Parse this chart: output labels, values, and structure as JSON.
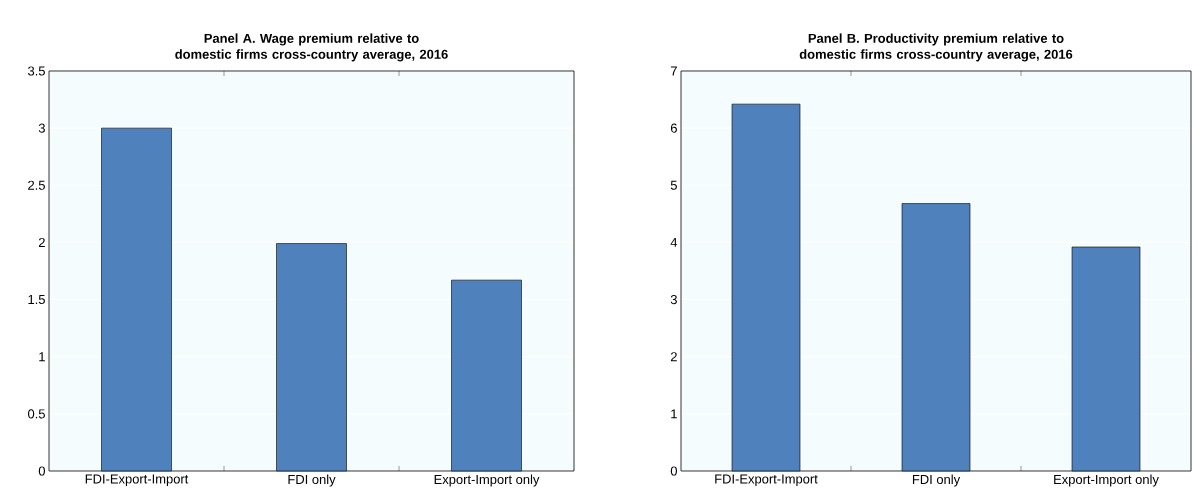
{
  "chart_data": [
    {
      "type": "bar",
      "title": "Panel A. Wage premium relative to domestic firms cross-country average, 2016",
      "categories": [
        "FDI-Export-Import",
        "FDI only",
        "Export-Import only"
      ],
      "values": [
        3.0,
        1.99,
        1.67
      ],
      "color": "#4f81bd",
      "ylim": [
        0,
        3.5
      ],
      "yticks": [
        0,
        0.5,
        1,
        1.5,
        2,
        2.5,
        3,
        3.5
      ],
      "grid": "y"
    },
    {
      "type": "bar",
      "title": "Panel B. Productivity premium relative to domestic firms cross-country average, 2016",
      "categories": [
        "FDI-Export-Import",
        "FDI only",
        "Export-Import only"
      ],
      "values": [
        6.42,
        4.68,
        3.92
      ],
      "color": "#4f81bd",
      "ylim": [
        0,
        7
      ],
      "yticks": [
        0,
        1,
        2,
        3,
        4,
        5,
        6,
        7
      ],
      "grid": "y"
    }
  ]
}
